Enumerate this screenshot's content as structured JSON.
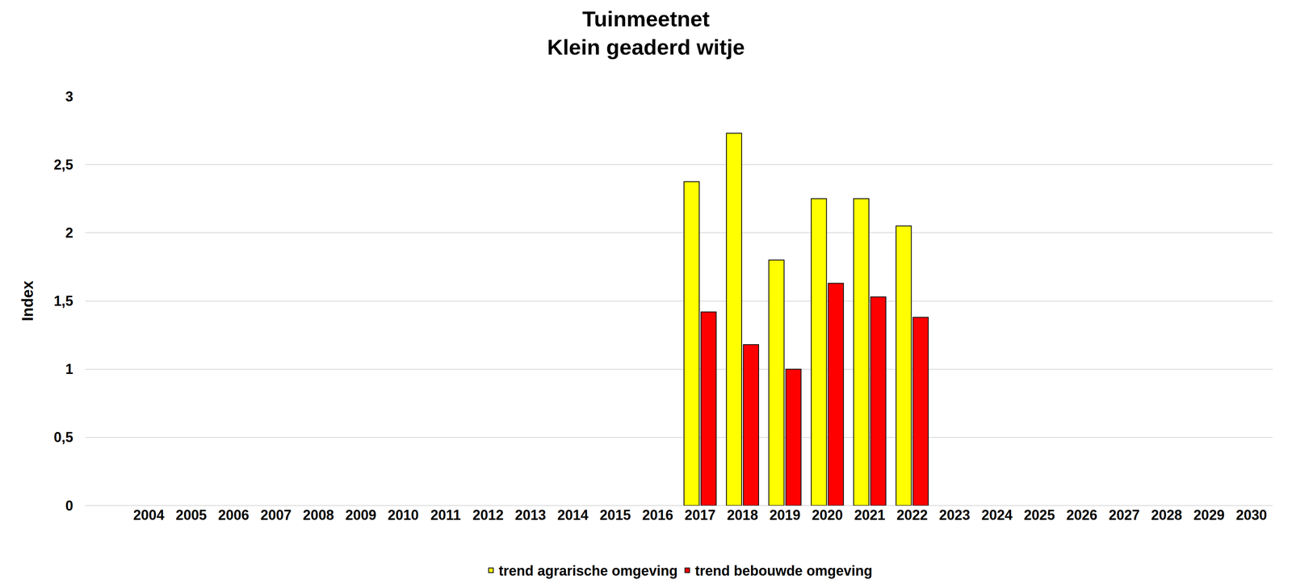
{
  "chart_data": {
    "type": "bar",
    "title": "Tuinmeetnet",
    "subtitle": "Klein geaderd witje",
    "y_label": "Index",
    "categories": [
      "2004",
      "2005",
      "2006",
      "2007",
      "2008",
      "2009",
      "2010",
      "2011",
      "2012",
      "2013",
      "2014",
      "2015",
      "2016",
      "2017",
      "2018",
      "2019",
      "2020",
      "2021",
      "2022",
      "2023",
      "2024",
      "2025",
      "2026",
      "2027",
      "2028",
      "2029",
      "2030"
    ],
    "series": [
      {
        "name": "trend agrarische omgeving",
        "color": "#ffff00",
        "values": [
          null,
          null,
          null,
          null,
          null,
          null,
          null,
          null,
          null,
          null,
          null,
          null,
          null,
          2.375,
          2.73,
          1.8,
          2.25,
          2.25,
          2.05,
          null,
          null,
          null,
          null,
          null,
          null,
          null,
          null
        ]
      },
      {
        "name": "trend bebouwde omgeving",
        "color": "#ff0000",
        "values": [
          null,
          null,
          null,
          null,
          null,
          null,
          null,
          null,
          null,
          null,
          null,
          null,
          null,
          1.42,
          1.18,
          1.0,
          1.63,
          1.53,
          1.38,
          null,
          null,
          null,
          null,
          null,
          null,
          null,
          null
        ]
      }
    ],
    "ylim": [
      0,
      3
    ],
    "yticks": [
      0,
      {
        "value": 0.5,
        "label": "0,5"
      },
      1,
      {
        "value": 1.5,
        "label": "1,5"
      },
      2,
      {
        "value": 2.5,
        "label": "2,5"
      },
      3
    ],
    "grid": true,
    "legend": "bottom"
  }
}
